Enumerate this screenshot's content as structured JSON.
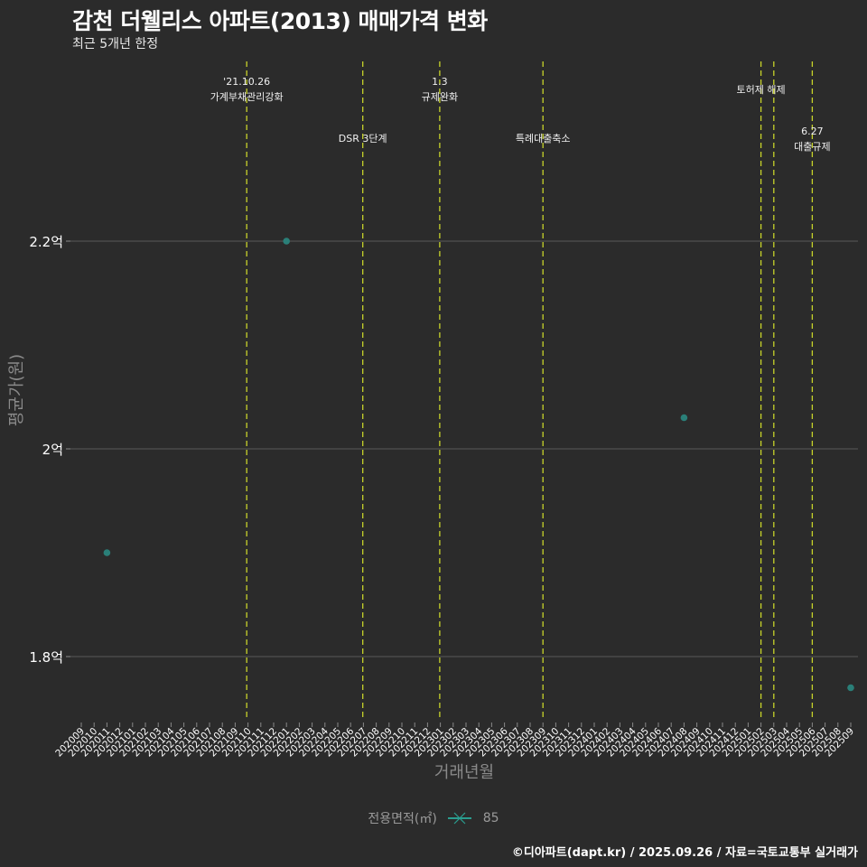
{
  "header": {
    "title": "감천 더웰리스 아파트(2013) 매매가격 변화",
    "subtitle": "최근 5개년 한정"
  },
  "caption": "©디아파트(dapt.kr) / 2025.09.26 / 자료=국토교통부 실거래가",
  "legend": {
    "title": "전용면적(㎡)",
    "items": [
      {
        "label": "85",
        "color": "#2a9d8f"
      }
    ]
  },
  "colors": {
    "background": "#2b2b2b",
    "grid": "#5a5a5a",
    "event_line": "#c8d42a",
    "point": "#2a7f78"
  },
  "chart_data": {
    "type": "scatter",
    "title": "감천 더웰리스 아파트(2013) 매매가격 변화",
    "subtitle": "최근 5개년 한정",
    "xlabel": "거래년월",
    "ylabel": "평균가(원)",
    "x_ticks": [
      "202009",
      "202010",
      "202011",
      "202012",
      "202101",
      "202102",
      "202103",
      "202104",
      "202105",
      "202106",
      "202107",
      "202108",
      "202109",
      "202110",
      "202111",
      "202112",
      "202201",
      "202202",
      "202203",
      "202204",
      "202205",
      "202206",
      "202207",
      "202208",
      "202209",
      "202210",
      "202211",
      "202212",
      "202301",
      "202302",
      "202303",
      "202304",
      "202305",
      "202306",
      "202307",
      "202308",
      "202309",
      "202310",
      "202311",
      "202312",
      "202401",
      "202402",
      "202403",
      "202404",
      "202405",
      "202406",
      "202407",
      "202408",
      "202409",
      "202410",
      "202411",
      "202412",
      "202501",
      "202502",
      "202503",
      "202504",
      "202505",
      "202506",
      "202507",
      "202508",
      "202509"
    ],
    "y_ticks": [
      {
        "value": 1.8,
        "label": "1.8억"
      },
      {
        "value": 2.0,
        "label": "2억"
      },
      {
        "value": 2.2,
        "label": "2.2억"
      }
    ],
    "ylim": [
      1.745,
      2.43
    ],
    "grid": true,
    "legend_position": "bottom",
    "series": [
      {
        "name": "85",
        "points": [
          {
            "x": "202011",
            "y": 1.9
          },
          {
            "x": "202201",
            "y": 2.2
          },
          {
            "x": "202408",
            "y": 2.03
          },
          {
            "x": "202509",
            "y": 1.77
          }
        ]
      }
    ],
    "annotations": [
      {
        "x_index": 12.9,
        "lines": [
          "'21.10.26",
          "가계부채관리강화"
        ],
        "row": 1
      },
      {
        "x_index": 21.95,
        "lines": [
          "DSR 3단계"
        ],
        "row": 3
      },
      {
        "x_index": 27.95,
        "lines": [
          "1.3",
          "규제완화"
        ],
        "row": 1
      },
      {
        "x_index": 36.0,
        "lines": [
          "특례대출축소"
        ],
        "row": 3
      },
      {
        "x_index": 53.0,
        "lines": [
          "토허제 해제"
        ],
        "row": 2
      },
      {
        "x_index": 54.0,
        "lines": [],
        "row": 2
      },
      {
        "x_index": 57.0,
        "lines": [
          "6.27",
          "대출규제"
        ],
        "row": 4
      }
    ]
  }
}
